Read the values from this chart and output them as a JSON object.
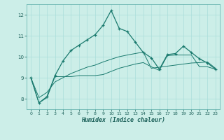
{
  "xlabel": "Humidex (Indice chaleur)",
  "bg_color": "#cceee8",
  "grid_color": "#aaddda",
  "line_color": "#1a7a6e",
  "x_values": [
    0,
    1,
    2,
    3,
    4,
    5,
    6,
    7,
    8,
    9,
    10,
    11,
    12,
    13,
    14,
    15,
    16,
    17,
    18,
    19,
    20,
    21,
    22,
    23
  ],
  "series1": [
    9.0,
    7.8,
    8.1,
    9.1,
    9.8,
    10.3,
    10.55,
    10.8,
    11.05,
    11.5,
    12.2,
    11.35,
    11.2,
    10.7,
    10.2,
    9.95,
    9.4,
    10.1,
    10.15,
    10.5,
    10.2,
    9.9,
    9.7,
    9.4
  ],
  "series2": [
    9.0,
    7.8,
    8.05,
    9.05,
    9.05,
    9.05,
    9.1,
    9.1,
    9.1,
    9.15,
    9.3,
    9.45,
    9.55,
    9.65,
    9.72,
    9.52,
    9.35,
    10.05,
    10.08,
    10.08,
    10.08,
    9.52,
    9.52,
    9.4
  ],
  "series3": [
    9.0,
    8.05,
    8.3,
    8.8,
    9.0,
    9.2,
    9.35,
    9.5,
    9.6,
    9.75,
    9.88,
    10.0,
    10.08,
    10.15,
    10.22,
    9.45,
    9.5,
    9.55,
    9.6,
    9.65,
    9.7,
    9.72,
    9.75,
    9.45
  ],
  "ylim": [
    7.5,
    12.5
  ],
  "xlim": [
    -0.5,
    23.5
  ],
  "yticks": [
    8,
    9,
    10,
    11,
    12
  ],
  "xticks": [
    0,
    1,
    2,
    3,
    4,
    5,
    6,
    7,
    8,
    9,
    10,
    11,
    12,
    13,
    14,
    15,
    16,
    17,
    18,
    19,
    20,
    21,
    22,
    23
  ]
}
